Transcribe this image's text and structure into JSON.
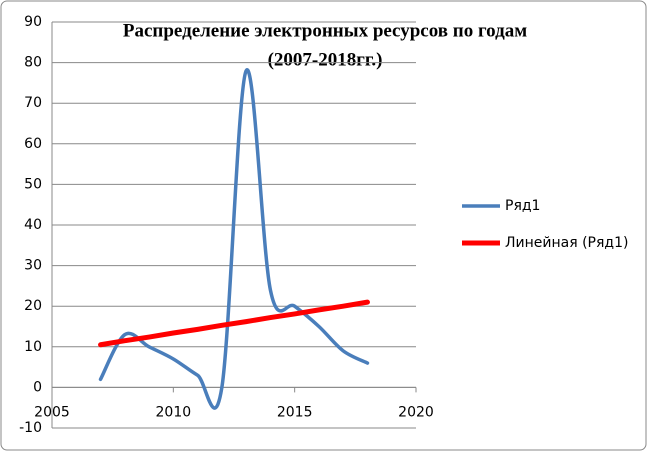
{
  "chart_data": {
    "type": "line",
    "title": [
      "Распределение электронных ресурсов по годам",
      "(2007-2018гг.)"
    ],
    "x": [
      2007,
      2008,
      2009,
      2010,
      2011,
      2012,
      2013,
      2014,
      2015,
      2016,
      2017,
      2018
    ],
    "series": [
      {
        "name": "Ряд1",
        "color": "#4a7ebb",
        "smooth": true,
        "values": [
          2,
          13,
          10,
          7,
          3,
          0,
          78,
          24,
          20,
          15,
          9,
          6
        ]
      },
      {
        "name": "Линейная (Ряд1)",
        "color": "#ff0000",
        "smooth": false,
        "values": [
          10.5,
          11.5,
          12.4,
          13.4,
          14.3,
          15.3,
          16.2,
          17.2,
          18.1,
          19.1,
          20,
          21
        ]
      }
    ],
    "xlim": [
      2005,
      2020
    ],
    "xticks": [
      2005,
      2010,
      2015,
      2020
    ],
    "ylim": [
      -10,
      90
    ],
    "yticks": [
      -10,
      0,
      10,
      20,
      30,
      40,
      50,
      60,
      70,
      80,
      90
    ],
    "grid": true,
    "legend": "right"
  }
}
